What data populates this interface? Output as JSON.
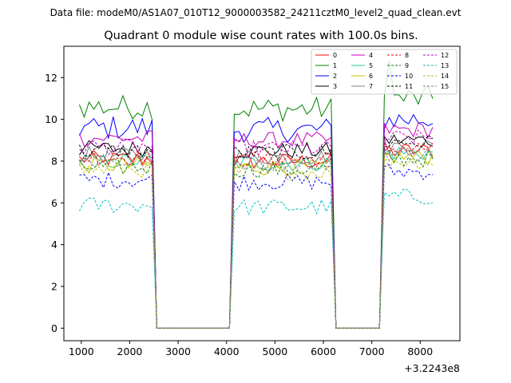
{
  "header": {
    "file_label": "Data file: modeM0/AS1A07_010T12_9000003582_24211cztM0_level2_quad_clean.evt"
  },
  "chart_data": {
    "type": "line",
    "title": "Quadrant 0 module wise count rates with 100.0s bins.",
    "xlabel": "",
    "ylabel": "",
    "x_offset_label": "+3.2243e8",
    "xlim": [
      640,
      8820
    ],
    "ylim": [
      -0.6,
      13.5
    ],
    "x_ticks": [
      1000,
      2000,
      3000,
      4000,
      5000,
      6000,
      7000,
      8000
    ],
    "x_tick_labels": [
      "1000",
      "2000",
      "3000",
      "4000",
      "5000",
      "6000",
      "7000",
      "8000"
    ],
    "y_ticks": [
      0,
      2,
      4,
      6,
      8,
      10,
      12
    ],
    "y_tick_labels": [
      "0",
      "2",
      "4",
      "6",
      "8",
      "10",
      "12"
    ],
    "grid": false,
    "legend_position": "top-right",
    "x_start": 960,
    "x_step": 100,
    "segments": [
      {
        "on_from": 960,
        "on_to": 2460,
        "gap_from": 2560,
        "gap_to": 4060
      },
      {
        "on_from": 4160,
        "on_to": 6160,
        "gap_from": 6260,
        "gap_to": 7160
      },
      {
        "on_from": 7260,
        "on_to": 8260
      }
    ],
    "series": [
      {
        "name": "0",
        "color": "#ff0000",
        "style": "solid",
        "level": 8.1
      },
      {
        "name": "1",
        "color": "#008000",
        "style": "solid",
        "level": 10.6
      },
      {
        "name": "2",
        "color": "#0000ff",
        "style": "solid",
        "level": 9.6
      },
      {
        "name": "3",
        "color": "#000000",
        "style": "solid",
        "level": 8.6
      },
      {
        "name": "4",
        "color": "#bf00bf",
        "style": "solid",
        "level": 9.1
      },
      {
        "name": "5",
        "color": "#2ec4a0",
        "style": "solid",
        "level": 8.0
      },
      {
        "name": "6",
        "color": "#bfbf00",
        "style": "solid",
        "level": 7.8
      },
      {
        "name": "7",
        "color": "#808080",
        "style": "solid",
        "level": 8.3
      },
      {
        "name": "8",
        "color": "#ff0000",
        "style": "dashed",
        "level": 8.2
      },
      {
        "name": "9",
        "color": "#008000",
        "style": "dashed",
        "level": 7.7
      },
      {
        "name": "10",
        "color": "#0000ff",
        "style": "dashed",
        "level": 7.1
      },
      {
        "name": "11",
        "color": "#000000",
        "style": "dashed",
        "level": 8.5
      },
      {
        "name": "12",
        "color": "#bf00bf",
        "style": "dashed",
        "level": 8.7
      },
      {
        "name": "13",
        "color": "#00bfbf",
        "style": "dashed",
        "level": 5.9
      },
      {
        "name": "14",
        "color": "#bfbf00",
        "style": "dashed",
        "level": 7.6
      },
      {
        "name": "15",
        "color": "#808080",
        "style": "dashed",
        "level": 8.0
      }
    ]
  }
}
